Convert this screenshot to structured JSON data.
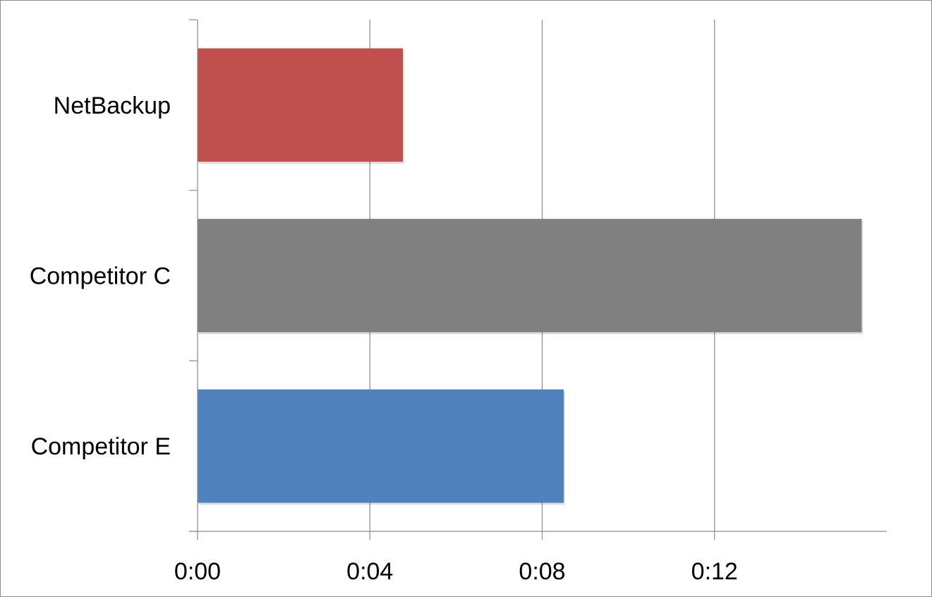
{
  "chart_data": {
    "type": "bar",
    "orientation": "horizontal",
    "title": "",
    "xlabel": "",
    "ylabel": "",
    "categories": [
      "NetBackup",
      "Competitor C",
      "Competitor E"
    ],
    "values_seconds": [
      286,
      925,
      510
    ],
    "values": [
      "0:04:46",
      "0:15:25",
      "0:08:30"
    ],
    "bar_colors": [
      "#c0504d",
      "#808080",
      "#4f81bd"
    ],
    "xlim_seconds": [
      0,
      960
    ],
    "x_ticks": [
      {
        "seconds": 0,
        "label": "0:00"
      },
      {
        "seconds": 240,
        "label": "0:04"
      },
      {
        "seconds": 480,
        "label": "0:08"
      },
      {
        "seconds": 720,
        "label": "0:12"
      }
    ],
    "grid": "vertical",
    "legend": "none"
  }
}
